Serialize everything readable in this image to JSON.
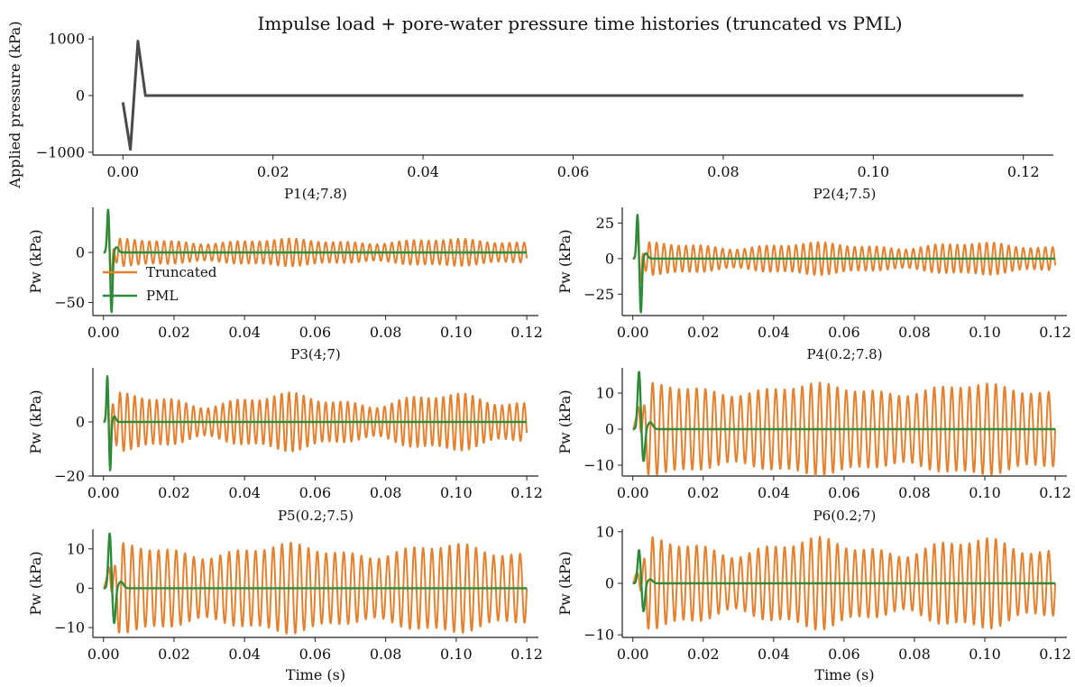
{
  "figure": {
    "title": "Impulse load + pore-water pressure time histories (truncated vs PML)"
  },
  "colors": {
    "impulse": "#4a4a4a",
    "truncated": "#e5802e",
    "pml": "#2e8b3a",
    "axis": "#222222"
  },
  "legend": {
    "placement": "lower-left of P1 panel",
    "entries": [
      {
        "label": "Truncated",
        "color": "#e5802e"
      },
      {
        "label": "PML",
        "color": "#2e8b3a"
      }
    ]
  },
  "chart_data": [
    {
      "id": "impulse",
      "type": "line",
      "title": "",
      "xlabel": "",
      "ylabel": "Applied pressure (kPa)",
      "xlim": [
        -0.004,
        0.124
      ],
      "ylim": [
        -1050,
        1050
      ],
      "xticks": [
        0.0,
        0.02,
        0.04,
        0.06,
        0.08,
        0.1,
        0.12
      ],
      "xtick_labels": [
        "0.00",
        "0.02",
        "0.04",
        "0.06",
        "0.08",
        "0.10",
        "0.12"
      ],
      "yticks": [
        -1000,
        0,
        1000
      ],
      "ytick_labels": [
        "−1000",
        "0",
        "1000"
      ],
      "series": [
        {
          "color": "#4a4a4a",
          "x": [
            0.0,
            0.001,
            0.002,
            0.003,
            0.12
          ],
          "y": [
            -120,
            -950,
            960,
            0,
            0
          ]
        }
      ]
    },
    {
      "id": "p1",
      "type": "line",
      "title": "P1(4;7.8)",
      "ylabel": "Pw (kPa)",
      "xlim": [
        -0.003,
        0.1233
      ],
      "ylim": [
        -63,
        45
      ],
      "xticks": [
        0.0,
        0.02,
        0.04,
        0.06,
        0.08,
        0.1,
        0.12
      ],
      "xtick_labels": [
        "0.00",
        "0.02",
        "0.04",
        "0.06",
        "0.08",
        "0.10",
        "0.12"
      ],
      "yticks": [
        -50,
        0
      ],
      "ytick_labels": [
        "−50",
        "0"
      ],
      "truncated": {
        "amplitude": 11,
        "frequency_hz": 480,
        "variation": 0.18
      },
      "pml": {
        "peak_max": 43,
        "peak_min": -60,
        "settles_by_s": 0.006
      },
      "series": [
        {
          "name": "Truncated",
          "color": "#e5802e"
        },
        {
          "name": "PML",
          "color": "#2e8b3a"
        }
      ]
    },
    {
      "id": "p2",
      "type": "line",
      "title": "P2(4;7.5)",
      "ylabel": "Pw (kPa)",
      "xlim": [
        -0.003,
        0.1233
      ],
      "ylim": [
        -40,
        36
      ],
      "xticks": [
        0.0,
        0.02,
        0.04,
        0.06,
        0.08,
        0.1,
        0.12
      ],
      "xtick_labels": [
        "0.00",
        "0.02",
        "0.04",
        "0.06",
        "0.08",
        "0.10",
        "0.12"
      ],
      "yticks": [
        -25,
        0,
        25
      ],
      "ytick_labels": [
        "−25",
        "0",
        "25"
      ],
      "truncated": {
        "amplitude": 9,
        "frequency_hz": 480,
        "variation": 0.2
      },
      "pml": {
        "peak_max": 31,
        "peak_min": -38,
        "settles_by_s": 0.006
      }
    },
    {
      "id": "p3",
      "type": "line",
      "title": "P3(4;7)",
      "ylabel": "Pw (kPa)",
      "xlim": [
        -0.003,
        0.1233
      ],
      "ylim": [
        -20,
        20
      ],
      "xticks": [
        0.0,
        0.02,
        0.04,
        0.06,
        0.08,
        0.1,
        0.12
      ],
      "xtick_labels": [
        "0.00",
        "0.02",
        "0.04",
        "0.06",
        "0.08",
        "0.10",
        "0.12"
      ],
      "yticks": [
        -20,
        0
      ],
      "ytick_labels": [
        "−20",
        "0"
      ],
      "truncated": {
        "amplitude": 8,
        "frequency_hz": 480,
        "variation": 0.25
      },
      "pml": {
        "peak_max": 17,
        "peak_min": -18,
        "settles_by_s": 0.005
      }
    },
    {
      "id": "p4",
      "type": "line",
      "title": "P4(0.2;7.8)",
      "ylabel": "Pw (kPa)",
      "xlim": [
        -0.003,
        0.1233
      ],
      "ylim": [
        -13,
        17
      ],
      "xticks": [
        0.0,
        0.02,
        0.04,
        0.06,
        0.08,
        0.1,
        0.12
      ],
      "xtick_labels": [
        "0.00",
        "0.02",
        "0.04",
        "0.06",
        "0.08",
        "0.10",
        "0.12"
      ],
      "yticks": [
        -10,
        0,
        10
      ],
      "ytick_labels": [
        "−10",
        "0",
        "10"
      ],
      "truncated": {
        "amplitude": 11,
        "frequency_hz": 400,
        "variation": 0.12
      },
      "pml": {
        "peak_max": 16,
        "peak_min": -9,
        "settles_by_s": 0.008
      }
    },
    {
      "id": "p5",
      "type": "line",
      "title": "P5(0.2;7.5)",
      "xlabel": "Time (s)",
      "ylabel": "Pw (kPa)",
      "xlim": [
        -0.003,
        0.1233
      ],
      "ylim": [
        -12.5,
        15
      ],
      "xticks": [
        0.0,
        0.02,
        0.04,
        0.06,
        0.08,
        0.1,
        0.12
      ],
      "xtick_labels": [
        "0.00",
        "0.02",
        "0.04",
        "0.06",
        "0.08",
        "0.10",
        "0.12"
      ],
      "yticks": [
        -10,
        0,
        10
      ],
      "ytick_labels": [
        "−10",
        "0",
        "10"
      ],
      "truncated": {
        "amplitude": 9.5,
        "frequency_hz": 400,
        "variation": 0.15
      },
      "pml": {
        "peak_max": 14,
        "peak_min": -9,
        "settles_by_s": 0.008
      }
    },
    {
      "id": "p6",
      "type": "line",
      "title": "P6(0.2;7)",
      "xlabel": "Time (s)",
      "ylabel": "Pw (kPa)",
      "xlim": [
        -0.003,
        0.1233
      ],
      "ylim": [
        -10.5,
        10.5
      ],
      "xticks": [
        0.0,
        0.02,
        0.04,
        0.06,
        0.08,
        0.1,
        0.12
      ],
      "xtick_labels": [
        "0.00",
        "0.02",
        "0.04",
        "0.06",
        "0.08",
        "0.10",
        "0.12"
      ],
      "yticks": [
        -10,
        0,
        10
      ],
      "ytick_labels": [
        "−10",
        "0",
        "10"
      ],
      "truncated": {
        "amplitude": 7,
        "frequency_hz": 400,
        "variation": 0.2
      },
      "pml": {
        "peak_max": 6.5,
        "peak_min": -5.5,
        "settles_by_s": 0.008
      }
    }
  ]
}
